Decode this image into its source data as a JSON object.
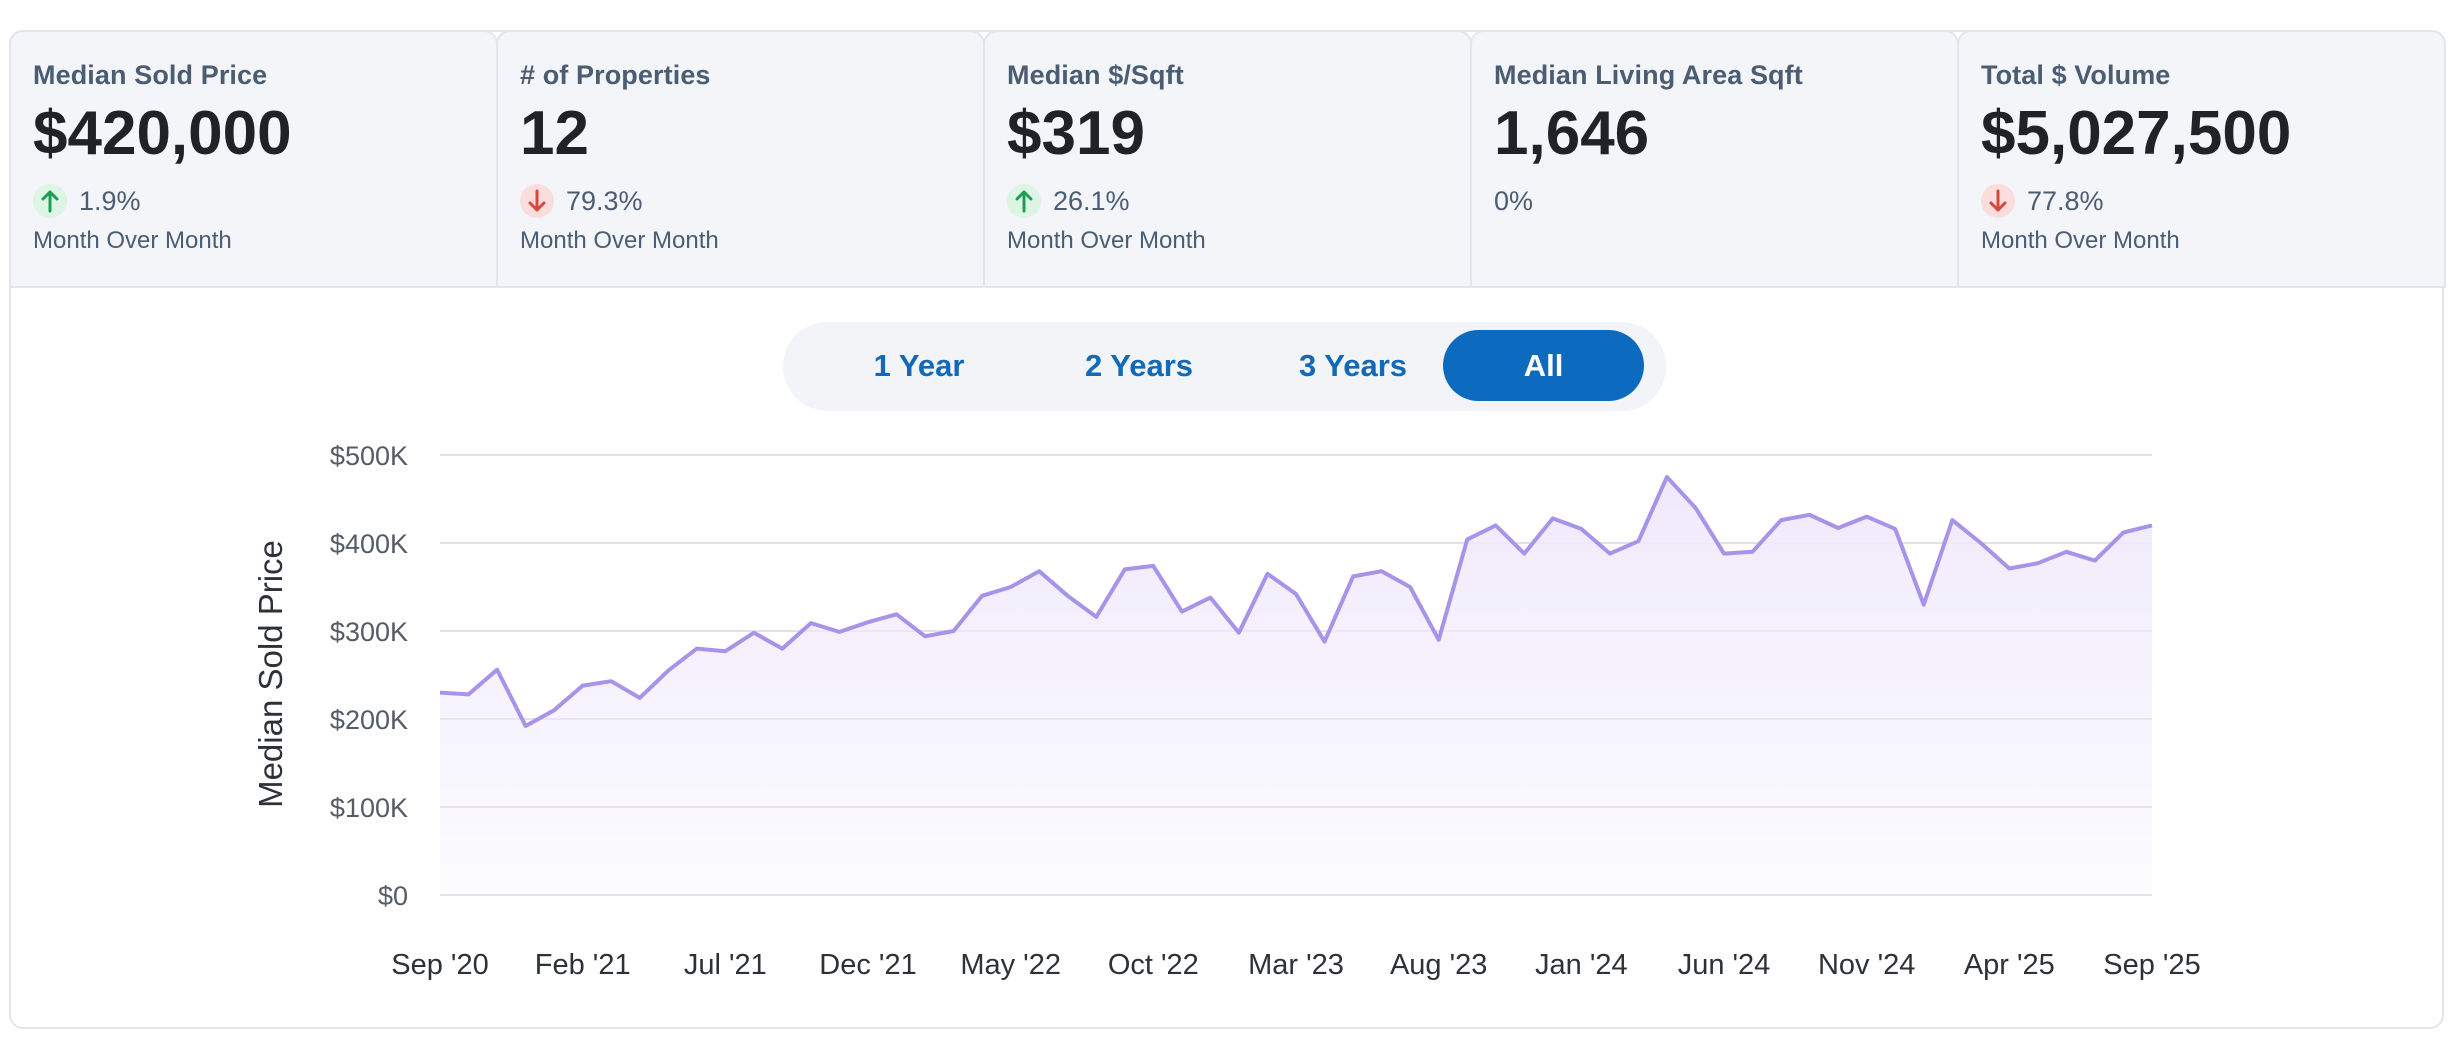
{
  "cards": [
    {
      "title": "Median Sold Price",
      "value": "$420,000",
      "direction": "up",
      "change": "1.9%",
      "sub": "Month Over Month",
      "active": true
    },
    {
      "title": "# of Properties",
      "value": "12",
      "direction": "down",
      "change": "79.3%",
      "sub": "Month Over Month",
      "active": false
    },
    {
      "title": "Median $/Sqft",
      "value": "$319",
      "direction": "up",
      "change": "26.1%",
      "sub": "Month Over Month",
      "active": false
    },
    {
      "title": "Median Living Area Sqft",
      "value": "1,646",
      "direction": "none",
      "change": "0%",
      "sub": "",
      "active": false
    },
    {
      "title": "Total $ Volume",
      "value": "$5,027,500",
      "direction": "down",
      "change": "77.8%",
      "sub": "Month Over Month",
      "active": false
    }
  ],
  "range_selector": {
    "options": [
      "1 Year",
      "2 Years",
      "3 Years",
      "All"
    ],
    "selected": "All"
  },
  "colors": {
    "line": "#a893ea",
    "fill": "#efeafc",
    "active_button": "#0d6bbf",
    "up": "#1e9e55",
    "down": "#d9463b"
  },
  "chart_data": {
    "type": "area",
    "title": "",
    "xlabel": "",
    "ylabel": "Median Sold Price",
    "ylim": [
      0,
      500000
    ],
    "yticks": [
      0,
      100000,
      200000,
      300000,
      400000,
      500000
    ],
    "ytick_labels": [
      "$0",
      "$100K",
      "$200K",
      "$300K",
      "$400K",
      "$500K"
    ],
    "xtick_labels": [
      "Sep '20",
      "Feb '21",
      "Jul '21",
      "Dec '21",
      "May '22",
      "Oct '22",
      "Mar '23",
      "Aug '23",
      "Jan '24",
      "Jun '24",
      "Nov '24",
      "Apr '25",
      "Sep '25"
    ],
    "series": [
      {
        "name": "Median Sold Price",
        "start": "Sep '20",
        "end": "Sep '25",
        "values": [
          230000,
          228000,
          256000,
          192000,
          210000,
          238000,
          243000,
          224000,
          255000,
          280000,
          277000,
          298000,
          280000,
          309000,
          299000,
          310000,
          319000,
          294000,
          300000,
          340000,
          350000,
          368000,
          340000,
          316000,
          370000,
          374000,
          322000,
          338000,
          298000,
          365000,
          342000,
          288000,
          362000,
          368000,
          350000,
          290000,
          404000,
          420000,
          388000,
          428000,
          416000,
          388000,
          402000,
          475000,
          440000,
          388000,
          390000,
          426000,
          432000,
          417000,
          430000,
          416000,
          330000,
          426000,
          400000,
          371000,
          377000,
          390000,
          380000,
          412000,
          420000
        ]
      }
    ]
  }
}
